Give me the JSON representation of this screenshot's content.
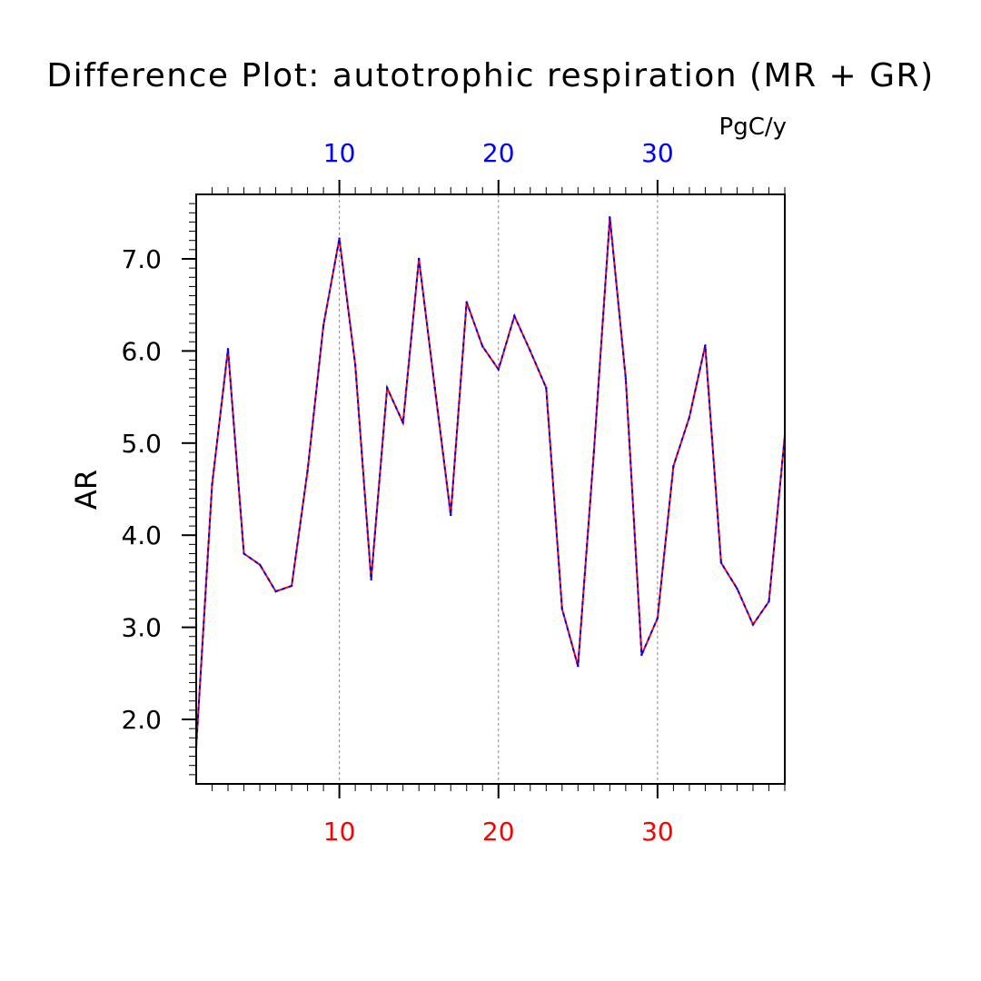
{
  "chart_data": {
    "type": "line",
    "title": "Difference Plot: autotrophic respiration (MR + GR)",
    "units": "PgC/y",
    "ylabel": "AR",
    "xlim": [
      1,
      38
    ],
    "ylim": [
      1.3,
      7.7
    ],
    "bottom_axis": {
      "ticks": [
        10,
        20,
        30
      ],
      "labels": [
        "10",
        "20",
        "30"
      ],
      "color": "#ff0000"
    },
    "top_axis": {
      "ticks": [
        10,
        20,
        30
      ],
      "labels": [
        "10",
        "20",
        "30"
      ],
      "color": "#0000ff"
    },
    "y_ticks": [
      2.0,
      3.0,
      4.0,
      5.0,
      6.0,
      7.0
    ],
    "y_tick_labels": [
      "2.0",
      "3.0",
      "4.0",
      "5.0",
      "6.0",
      "7.0"
    ],
    "grid": "vertical dashed at major x ticks",
    "series": [
      {
        "color": "#ff0000",
        "style": "solid",
        "x": [
          1,
          2,
          3,
          4,
          5,
          6,
          7,
          8,
          9,
          10,
          11,
          12,
          13,
          14,
          15,
          16,
          17,
          18,
          19,
          20,
          21,
          22,
          23,
          24,
          25,
          26,
          27,
          28,
          29,
          30,
          31,
          32,
          33,
          34,
          35,
          36,
          37,
          38
        ],
        "values": [
          1.7,
          4.55,
          6.02,
          3.8,
          3.68,
          3.39,
          3.45,
          4.7,
          6.28,
          7.22,
          5.85,
          3.52,
          5.6,
          5.22,
          7.0,
          5.6,
          4.22,
          6.53,
          6.05,
          5.8,
          6.38,
          6.0,
          5.6,
          3.2,
          2.58,
          4.9,
          7.45,
          5.7,
          2.7,
          3.1,
          4.75,
          5.28,
          6.06,
          3.7,
          3.42,
          3.03,
          3.28,
          5.08
        ]
      },
      {
        "color": "#0000ff",
        "style": "dashed",
        "x": [
          1,
          2,
          3,
          4,
          5,
          6,
          7,
          8,
          9,
          10,
          11,
          12,
          13,
          14,
          15,
          16,
          17,
          18,
          19,
          20,
          21,
          22,
          23,
          24,
          25,
          26,
          27,
          28,
          29,
          30,
          31,
          32,
          33,
          34,
          35,
          36,
          37,
          38
        ],
        "values": [
          1.7,
          4.55,
          6.02,
          3.8,
          3.68,
          3.39,
          3.45,
          4.7,
          6.28,
          7.22,
          5.85,
          3.52,
          5.6,
          5.22,
          7.0,
          5.6,
          4.22,
          6.53,
          6.05,
          5.8,
          6.38,
          6.0,
          5.6,
          3.2,
          2.58,
          4.9,
          7.45,
          5.7,
          2.7,
          3.1,
          4.75,
          5.28,
          6.06,
          3.7,
          3.42,
          3.03,
          3.28,
          5.08
        ]
      }
    ]
  }
}
